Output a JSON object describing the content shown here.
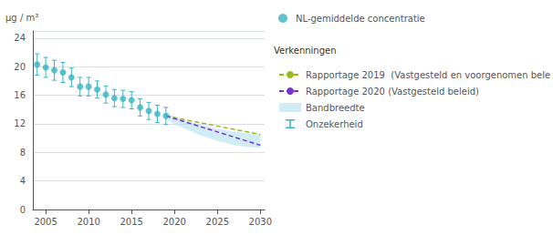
{
  "chart_data": {
    "type": "line",
    "y_label": "μg / m³",
    "annotations": [
      "Verkenningen"
    ],
    "xlim": [
      2003.5,
      2030.5
    ],
    "xticks": [
      2005,
      2010,
      2015,
      2020,
      2025,
      2030
    ],
    "ylim": [
      0,
      25
    ],
    "yticks": [
      0,
      4,
      8,
      12,
      16,
      20,
      24
    ],
    "grid": true,
    "series": [
      {
        "name": "Bandbreedte",
        "type": "band",
        "color": "#aadeee",
        "x": [
          2019,
          2020,
          2021,
          2022,
          2023,
          2024,
          2025,
          2026,
          2027,
          2028,
          2029,
          2030
        ],
        "lower": [
          12.7,
          12.0,
          11.4,
          10.9,
          10.4,
          10.0,
          9.6,
          9.3,
          9.0,
          8.8,
          8.7,
          8.6
        ],
        "upper": [
          13.5,
          13.0,
          12.6,
          12.2,
          11.9,
          11.6,
          11.3,
          11.1,
          10.9,
          10.7,
          10.6,
          10.5
        ]
      },
      {
        "name": "Rapportage 2019  (Vastgesteld en voorgenomen bele",
        "type": "line",
        "color": "#99bb22",
        "line_style": "dashed",
        "x": [
          2019,
          2030
        ],
        "values": [
          13.1,
          10.5
        ]
      },
      {
        "name": "Rapportage 2020 (Vastgesteld beleid)",
        "type": "line",
        "color": "#7733cc",
        "line_style": "dashed",
        "x": [
          2019,
          2030
        ],
        "values": [
          13.1,
          9.0
        ]
      },
      {
        "name": "NL-gemiddelde concentratie",
        "type": "scatter",
        "color": "#3ab5c0",
        "marker": "circle",
        "x": [
          2004,
          2005,
          2006,
          2007,
          2008,
          2009,
          2010,
          2011,
          2012,
          2013,
          2014,
          2015,
          2016,
          2017,
          2018,
          2019
        ],
        "values": [
          20.3,
          19.9,
          19.5,
          19.2,
          18.5,
          17.2,
          17.2,
          16.8,
          16.1,
          15.6,
          15.5,
          15.3,
          14.3,
          13.8,
          13.4,
          13.1
        ],
        "error_name": "Onzekerheid",
        "error_color": "#3ab5c0",
        "error_low": [
          1.5,
          1.4,
          1.4,
          1.4,
          1.3,
          1.3,
          1.3,
          1.2,
          1.2,
          1.2,
          1.2,
          1.2,
          1.2,
          1.2,
          1.2,
          1.2
        ],
        "error_high": [
          1.5,
          1.4,
          1.4,
          1.4,
          1.3,
          1.3,
          1.3,
          1.2,
          1.2,
          1.2,
          1.2,
          1.2,
          1.2,
          1.2,
          1.2,
          1.2
        ]
      }
    ]
  }
}
